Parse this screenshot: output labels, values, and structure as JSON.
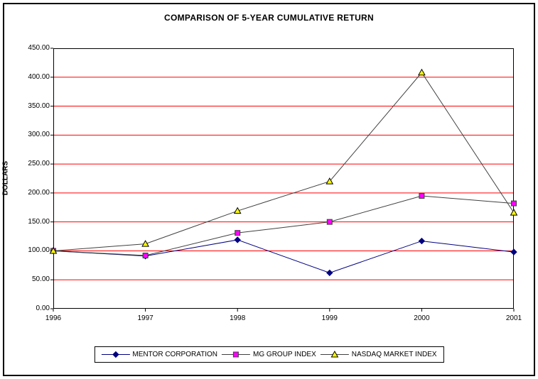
{
  "chart_data": {
    "type": "line",
    "title": "COMPARISON OF 5-YEAR CUMULATIVE RETURN",
    "ylabel": "DOLLARS",
    "xlabel": "",
    "categories": [
      "1996",
      "1997",
      "1998",
      "1999",
      "2000",
      "2001"
    ],
    "ylim": [
      0,
      450
    ],
    "ytick_step": 50,
    "ytick_labels": [
      "0.00",
      "50.00",
      "100.00",
      "150.00",
      "200.00",
      "250.00",
      "300.00",
      "350.00",
      "400.00",
      "450.00"
    ],
    "grid": "horizontal-only",
    "gridline_color": "#FF0000",
    "axis_color": "#000000",
    "legend_position": "bottom",
    "series": [
      {
        "name": "MENTOR CORPORATION",
        "marker": "diamond",
        "line_color": "#000080",
        "marker_fill": "#000080",
        "marker_stroke": "#000080",
        "values": [
          100.0,
          91.0,
          119.0,
          62.0,
          117.0,
          98.0
        ]
      },
      {
        "name": "MG GROUP INDEX",
        "marker": "square",
        "line_color": "#404040",
        "marker_fill": "#FF00FF",
        "marker_stroke": "#404040",
        "values": [
          100.0,
          92.0,
          131.0,
          150.0,
          195.0,
          182.0
        ]
      },
      {
        "name": "NASDAQ MARKET INDEX",
        "marker": "triangle",
        "line_color": "#404040",
        "marker_fill": "#FFFF00",
        "marker_stroke": "#000000",
        "values": [
          100.0,
          112.0,
          169.0,
          220.0,
          408.0,
          166.0
        ]
      }
    ]
  }
}
